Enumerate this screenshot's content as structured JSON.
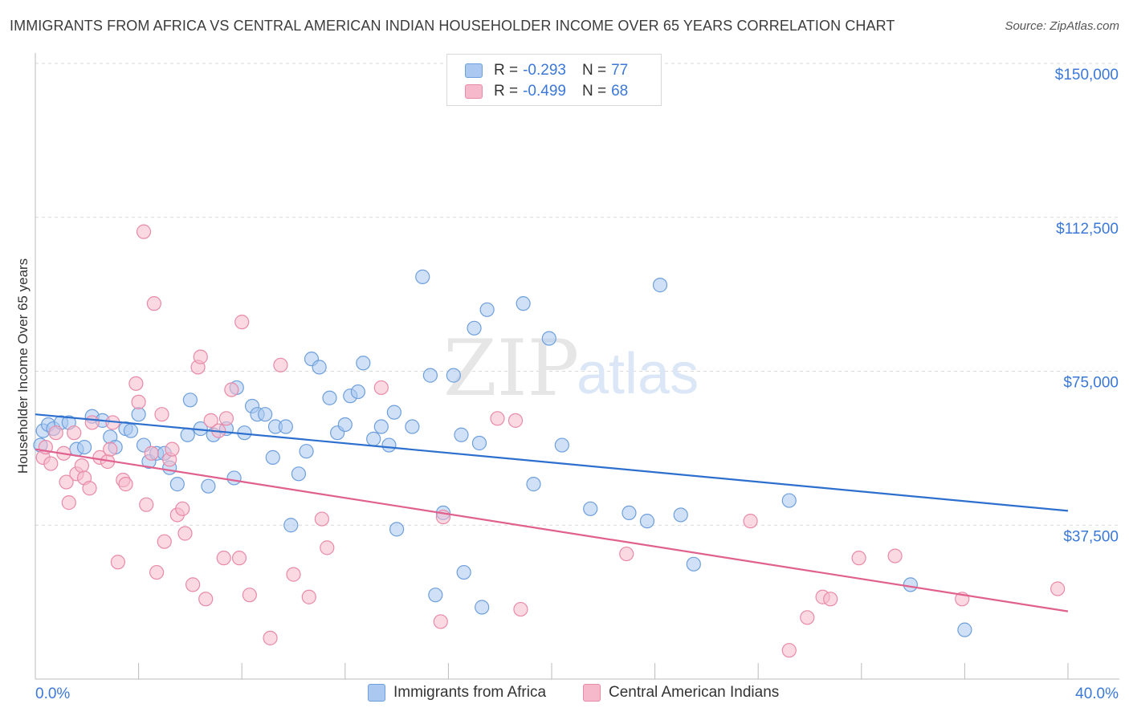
{
  "title": "IMMIGRANTS FROM AFRICA VS CENTRAL AMERICAN INDIAN HOUSEHOLDER INCOME OVER 65 YEARS CORRELATION CHART",
  "source": "Source: ZipAtlas.com",
  "watermark": {
    "zip": "ZIP",
    "atlas": "atlas"
  },
  "colors": {
    "blue_fill": "#aac8f0",
    "blue_stroke": "#6e9fdc",
    "blue_line": "#2d6fce",
    "pink_fill": "#f6b9cc",
    "pink_stroke": "#e88aa8",
    "pink_line": "#e0608e",
    "axis_label": "#3b78d8",
    "grid": "#d9d9d9"
  },
  "legend": {
    "r_label": "R =",
    "n_label": "N =",
    "entries": [
      {
        "r": "-0.293",
        "n": "77"
      },
      {
        "r": "-0.499",
        "n": "68"
      }
    ]
  },
  "chart_data": {
    "type": "scatter",
    "xlabel": "",
    "ylabel": "Householder Income Over 65 years",
    "xlim": [
      0,
      40
    ],
    "ylim": [
      0,
      150000
    ],
    "x_tick_labels": [
      "0.0%",
      "40.0%"
    ],
    "y_ticks": [
      37500,
      75000,
      112500,
      150000
    ],
    "y_tick_labels": [
      "$37,500",
      "$75,000",
      "$112,500",
      "$150,000"
    ],
    "grid": true,
    "series": [
      {
        "name": "Immigrants from Africa",
        "trend": {
          "x": [
            0,
            40
          ],
          "y": [
            64500,
            41000
          ]
        },
        "points": [
          [
            0.3,
            60500
          ],
          [
            0.5,
            62000
          ],
          [
            0.7,
            61000
          ],
          [
            1.0,
            62500
          ],
          [
            1.3,
            62500
          ],
          [
            1.6,
            56000
          ],
          [
            1.9,
            56500
          ],
          [
            2.2,
            64000
          ],
          [
            2.6,
            63000
          ],
          [
            2.9,
            59000
          ],
          [
            3.1,
            56500
          ],
          [
            3.5,
            61000
          ],
          [
            3.7,
            60500
          ],
          [
            4.0,
            64500
          ],
          [
            4.2,
            57000
          ],
          [
            4.4,
            53000
          ],
          [
            4.7,
            55000
          ],
          [
            5.0,
            55000
          ],
          [
            5.2,
            51500
          ],
          [
            5.5,
            47500
          ],
          [
            5.9,
            59500
          ],
          [
            6.0,
            68000
          ],
          [
            6.4,
            61000
          ],
          [
            6.7,
            47000
          ],
          [
            6.9,
            59500
          ],
          [
            7.4,
            61000
          ],
          [
            7.7,
            49000
          ],
          [
            7.8,
            71000
          ],
          [
            8.1,
            60000
          ],
          [
            8.4,
            66500
          ],
          [
            8.6,
            64500
          ],
          [
            8.9,
            64500
          ],
          [
            9.2,
            54000
          ],
          [
            9.3,
            61500
          ],
          [
            9.7,
            61500
          ],
          [
            9.9,
            37500
          ],
          [
            10.2,
            50000
          ],
          [
            10.5,
            55500
          ],
          [
            10.7,
            78000
          ],
          [
            11.0,
            76000
          ],
          [
            11.4,
            68500
          ],
          [
            11.7,
            60000
          ],
          [
            12.0,
            62000
          ],
          [
            12.2,
            69000
          ],
          [
            12.5,
            70000
          ],
          [
            12.7,
            77000
          ],
          [
            13.1,
            58500
          ],
          [
            13.4,
            61500
          ],
          [
            13.7,
            57000
          ],
          [
            13.9,
            65000
          ],
          [
            14.0,
            36500
          ],
          [
            14.6,
            61500
          ],
          [
            15.0,
            98000
          ],
          [
            15.3,
            74000
          ],
          [
            15.5,
            20500
          ],
          [
            15.8,
            40500
          ],
          [
            16.2,
            74000
          ],
          [
            16.5,
            59500
          ],
          [
            16.6,
            26000
          ],
          [
            17.0,
            85500
          ],
          [
            17.2,
            57500
          ],
          [
            17.3,
            17500
          ],
          [
            17.5,
            90000
          ],
          [
            18.9,
            91500
          ],
          [
            19.3,
            47500
          ],
          [
            19.9,
            83000
          ],
          [
            20.4,
            57000
          ],
          [
            21.5,
            41500
          ],
          [
            23.0,
            40500
          ],
          [
            23.7,
            38500
          ],
          [
            24.2,
            96000
          ],
          [
            25.0,
            40000
          ],
          [
            25.5,
            28000
          ],
          [
            29.2,
            43500
          ],
          [
            33.9,
            23000
          ],
          [
            36.0,
            12000
          ],
          [
            0.2,
            57000
          ]
        ]
      },
      {
        "name": "Central American Indians",
        "trend": {
          "x": [
            0,
            40
          ],
          "y": [
            56000,
            16500
          ]
        },
        "points": [
          [
            0.3,
            54000
          ],
          [
            0.4,
            56500
          ],
          [
            0.6,
            52500
          ],
          [
            0.8,
            60000
          ],
          [
            1.1,
            55000
          ],
          [
            1.2,
            48000
          ],
          [
            1.3,
            43000
          ],
          [
            1.5,
            60000
          ],
          [
            1.6,
            50000
          ],
          [
            1.8,
            52000
          ],
          [
            1.9,
            49000
          ],
          [
            2.1,
            46500
          ],
          [
            2.2,
            62500
          ],
          [
            2.5,
            54000
          ],
          [
            2.8,
            53000
          ],
          [
            2.9,
            56000
          ],
          [
            3.0,
            62500
          ],
          [
            3.2,
            28500
          ],
          [
            3.4,
            48500
          ],
          [
            3.5,
            47500
          ],
          [
            3.9,
            72000
          ],
          [
            4.0,
            67500
          ],
          [
            4.2,
            109000
          ],
          [
            4.3,
            42500
          ],
          [
            4.5,
            55000
          ],
          [
            4.6,
            91500
          ],
          [
            4.7,
            26000
          ],
          [
            4.9,
            64500
          ],
          [
            5.0,
            33500
          ],
          [
            5.2,
            53500
          ],
          [
            5.3,
            56000
          ],
          [
            5.5,
            40000
          ],
          [
            5.7,
            41500
          ],
          [
            5.8,
            35500
          ],
          [
            6.1,
            23000
          ],
          [
            6.3,
            76000
          ],
          [
            6.4,
            78500
          ],
          [
            6.6,
            19500
          ],
          [
            6.8,
            63000
          ],
          [
            7.1,
            60500
          ],
          [
            7.3,
            29500
          ],
          [
            7.4,
            63500
          ],
          [
            7.6,
            70500
          ],
          [
            7.9,
            29500
          ],
          [
            8.0,
            87000
          ],
          [
            8.3,
            20500
          ],
          [
            9.1,
            10000
          ],
          [
            9.5,
            76500
          ],
          [
            10.0,
            25500
          ],
          [
            10.6,
            20000
          ],
          [
            11.1,
            39000
          ],
          [
            11.3,
            32000
          ],
          [
            13.4,
            71000
          ],
          [
            15.7,
            14000
          ],
          [
            15.8,
            39500
          ],
          [
            17.9,
            63500
          ],
          [
            18.6,
            63000
          ],
          [
            18.8,
            17000
          ],
          [
            22.9,
            30500
          ],
          [
            27.7,
            38500
          ],
          [
            29.2,
            7000
          ],
          [
            29.9,
            15000
          ],
          [
            30.5,
            20000
          ],
          [
            30.8,
            19500
          ],
          [
            31.9,
            29500
          ],
          [
            33.3,
            30000
          ],
          [
            35.9,
            19500
          ],
          [
            39.6,
            22000
          ]
        ]
      }
    ]
  }
}
